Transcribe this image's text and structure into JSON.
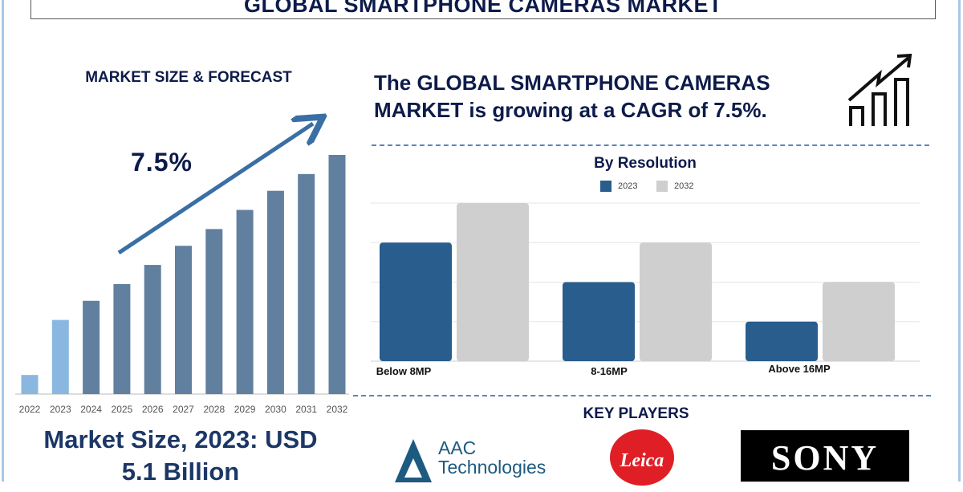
{
  "title": "GLOBAL SMARTPHONE CAMERAS MARKET",
  "left_panel": {
    "heading": "MARKET SIZE & FORECAST",
    "cagr_label": "7.5%",
    "market_size_line1": "Market Size, 2023: USD",
    "market_size_line2": "5.1 Billion"
  },
  "headline": {
    "line1": "The GLOBAL SMARTPHONE CAMERAS",
    "line2": "MARKET is growing at a CAGR of 7.5%.",
    "icon": "growth-chart-icon"
  },
  "key_players": {
    "heading": "KEY PLAYERS",
    "logos": [
      "AAC Technologies",
      "Leica",
      "SONY"
    ]
  },
  "colors": {
    "dark_navy": "#0d1b4a",
    "bar_historic": "#8ab7e0",
    "bar_forecast": "#61809f",
    "series_2023": "#285d8e",
    "series_2032": "#cfcfcf",
    "arrow": "#3a6fa5"
  },
  "chart_data": [
    {
      "type": "bar",
      "title": "",
      "categories": [
        "2022",
        "2023",
        "2024",
        "2025",
        "2026",
        "2027",
        "2028",
        "2029",
        "2030",
        "2031",
        "2032"
      ],
      "values": [
        8,
        31,
        39,
        46,
        54,
        62,
        69,
        77,
        85,
        92,
        100
      ],
      "historic_categories": [
        "2022",
        "2023"
      ],
      "annotation": "7.5%",
      "grid": false,
      "y_axis_shown": false
    },
    {
      "type": "bar",
      "title": "By Resolution",
      "categories": [
        "Below 8MP",
        "8-16MP",
        "Above 16MP"
      ],
      "series": [
        {
          "name": "2023",
          "values": [
            3,
            2,
            1
          ]
        },
        {
          "name": "2032",
          "values": [
            4,
            3,
            2
          ]
        }
      ],
      "ylim": [
        0,
        4
      ],
      "grid": true,
      "legend": "top-center",
      "y_axis_shown": false
    }
  ]
}
